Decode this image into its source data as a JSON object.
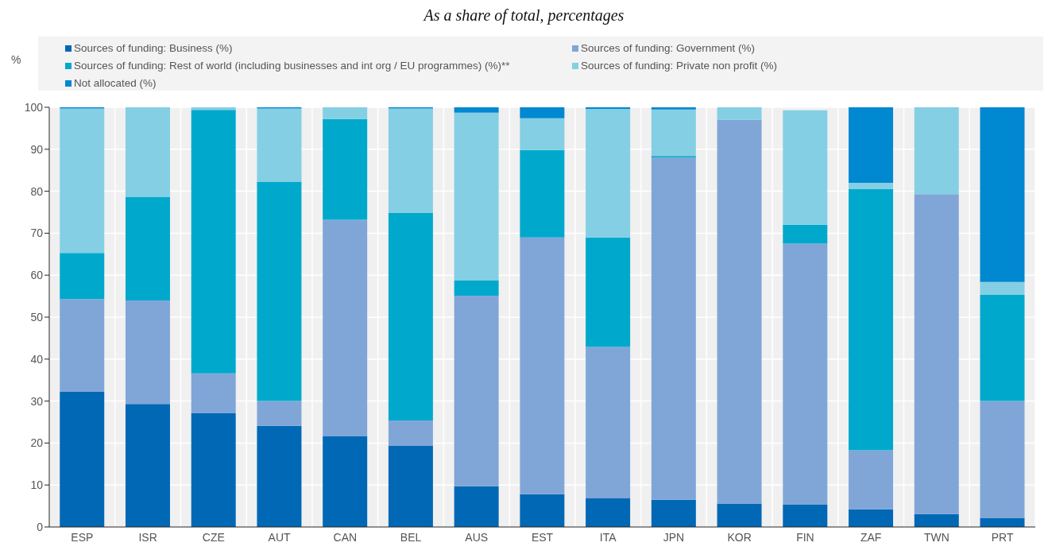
{
  "chart_data": {
    "type": "bar",
    "title": "As a share of total, percentages",
    "ylabel": "%",
    "stacked": true,
    "grid": true,
    "legend": "top",
    "categories": [
      "ESP",
      "ISR",
      "CZE",
      "AUT",
      "CAN",
      "BEL",
      "AUS",
      "EST",
      "ITA",
      "JPN",
      "KOR",
      "FIN",
      "ZAF",
      "TWN",
      "PRT"
    ],
    "ylim": [
      0,
      100
    ],
    "yticks": [
      0,
      10,
      20,
      30,
      40,
      50,
      60,
      70,
      80,
      90,
      100
    ],
    "series": [
      {
        "name": "Sources of funding: Business (%)",
        "color": "#0068b5",
        "values": [
          32.3,
          29.3,
          27.1,
          24.1,
          21.7,
          19.3,
          9.7,
          7.8,
          6.8,
          6.5,
          5.6,
          5.4,
          4.2,
          3.1,
          2.2
        ]
      },
      {
        "name": "Sources of funding: Government (%)",
        "color": "#80a6d8",
        "values": [
          22.0,
          24.7,
          9.5,
          5.9,
          51.5,
          6.1,
          45.4,
          61.2,
          36.1,
          81.5,
          91.4,
          62.1,
          14.1,
          76.2,
          27.8
        ]
      },
      {
        "name": "Sources of funding: Rest of world (including businesses and int org / EU  programmes) (%)**",
        "color": "#00a9cc",
        "values": [
          11.0,
          24.6,
          62.8,
          52.3,
          24.0,
          49.4,
          3.7,
          20.8,
          26.1,
          0.4,
          0,
          4.5,
          62.2,
          0,
          25.3
        ]
      },
      {
        "name": "Sources of funding: Private non profit (%)",
        "color": "#84cfe3",
        "values": [
          34.4,
          21.4,
          0.6,
          17.4,
          2.8,
          24.9,
          39.9,
          7.6,
          30.6,
          11.1,
          3.0,
          27.3,
          1.5,
          20.7,
          3.1
        ]
      },
      {
        "name": "Not allocated (%)",
        "color": "#0088d1",
        "values": [
          0.3,
          0,
          0,
          0.3,
          0,
          0.3,
          1.3,
          2.6,
          0.4,
          0.5,
          0,
          0,
          18.0,
          0,
          41.6
        ]
      }
    ]
  }
}
